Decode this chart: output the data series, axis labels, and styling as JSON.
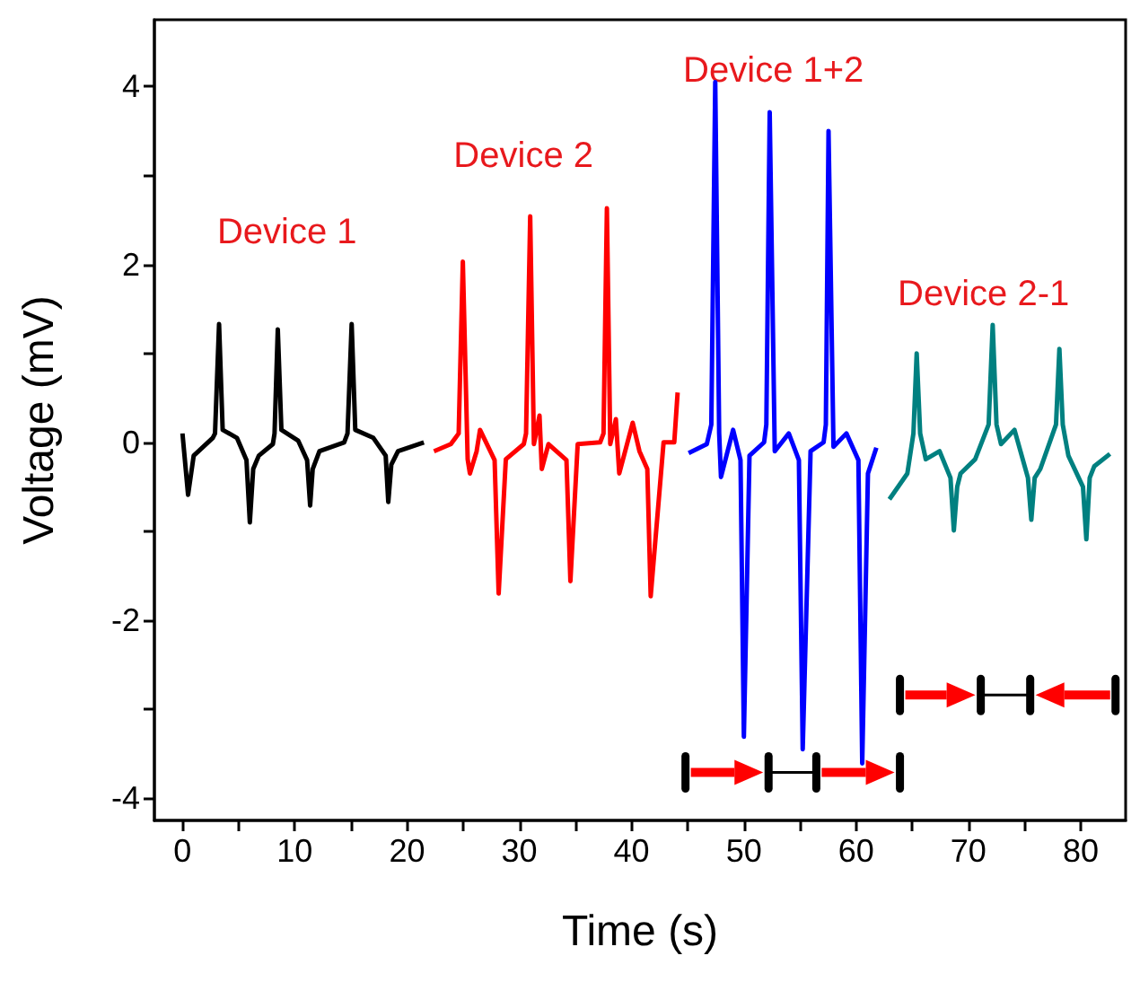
{
  "chart_data": {
    "type": "line",
    "xlabel": "Time (s)",
    "ylabel": "Voltage (mV)",
    "xlim": [
      -2.5,
      84
    ],
    "ylim": [
      -4.25,
      4.75
    ],
    "xticks": [
      0,
      {
        "value": 5,
        "label": null
      },
      10,
      {
        "value": 15,
        "label": null
      },
      20,
      {
        "value": 25,
        "label": null
      },
      30,
      {
        "value": 35,
        "label": null
      },
      40,
      {
        "value": 45,
        "label": null
      },
      50,
      {
        "value": 55,
        "label": null
      },
      60,
      {
        "value": 65,
        "label": null
      },
      70,
      {
        "value": 75,
        "label": null
      },
      80
    ],
    "yticks": [
      -4,
      {
        "value": -3,
        "label": null
      },
      -2,
      {
        "value": -1,
        "label": null
      },
      0,
      {
        "value": 1,
        "label": null
      },
      2,
      {
        "value": 3,
        "label": null
      },
      4
    ],
    "grid": false,
    "marker": "none",
    "line_style": "solid",
    "series": [
      {
        "name": "Device 1",
        "color": "#000000",
        "x": [
          0,
          0.5,
          1.0,
          2.7,
          2.9,
          3.26,
          3.58,
          4.85,
          5.7,
          6.0,
          6.3,
          6.8,
          8.05,
          8.2,
          8.49,
          8.81,
          10.3,
          11.1,
          11.37,
          11.6,
          12.2,
          14.4,
          14.7,
          15.07,
          15.39,
          17.0,
          18.1,
          18.33,
          18.6,
          19.2,
          21.5
        ],
        "values": [
          0.1,
          -0.59,
          -0.15,
          0.05,
          0.1,
          1.33,
          0.14,
          0.05,
          -0.2,
          -0.9,
          -0.3,
          -0.15,
          -0.02,
          0.1,
          1.27,
          0.14,
          0.02,
          -0.2,
          -0.71,
          -0.3,
          -0.1,
          0,
          0.1,
          1.33,
          0.14,
          0.05,
          -0.15,
          -0.67,
          -0.25,
          -0.1,
          0
        ]
      },
      {
        "name": "Device 2",
        "color": "#ff0000",
        "x": [
          22.4,
          23.9,
          24.6,
          24.97,
          25.4,
          25.6,
          26.2,
          26.5,
          27.8,
          28.16,
          28.8,
          30.4,
          30.6,
          30.97,
          31.3,
          31.8,
          32.0,
          32.6,
          34.2,
          34.55,
          35.2,
          37.2,
          37.5,
          37.8,
          38.1,
          38.6,
          38.9,
          40.1,
          40.7,
          41.4,
          41.7,
          42.85,
          43.8,
          44.1
        ],
        "values": [
          -0.1,
          -0.02,
          0.1,
          2.03,
          -0.19,
          -0.35,
          -0.1,
          0.14,
          -0.2,
          -1.7,
          -0.19,
          -0.02,
          0.1,
          2.54,
          -0.02,
          0.3,
          -0.3,
          -0.02,
          -0.2,
          -1.56,
          -0.02,
          0,
          0.1,
          2.63,
          -0.02,
          0.26,
          -0.35,
          0.22,
          -0.1,
          -0.3,
          -1.73,
          0,
          0,
          0.56
        ]
      },
      {
        "name": "Device 1+2",
        "color": "#0000ff",
        "x": [
          45.08,
          46.7,
          47.1,
          47.45,
          47.8,
          47.96,
          49.04,
          49.7,
          50.0,
          50.5,
          51.8,
          52.0,
          52.3,
          52.75,
          54.0,
          54.9,
          55.24,
          55.94,
          57.1,
          57.3,
          57.54,
          57.98,
          59.13,
          60.2,
          60.54,
          61.05,
          61.8
        ],
        "values": [
          -0.12,
          -0.02,
          0.2,
          4.05,
          0.1,
          -0.39,
          0.14,
          -0.2,
          -3.31,
          -0.15,
          0,
          0.2,
          3.71,
          -0.1,
          0.1,
          -0.2,
          -3.45,
          -0.1,
          0,
          0.2,
          3.5,
          -0.05,
          0.1,
          -0.2,
          -3.61,
          -0.35,
          -0.06
        ]
      },
      {
        "name": "Device 2-1",
        "color": "#008080",
        "x": [
          62.96,
          64.56,
          65.1,
          65.39,
          65.7,
          66.2,
          67.43,
          68.4,
          68.7,
          69.0,
          69.3,
          70.6,
          71.8,
          72.16,
          72.5,
          72.9,
          74.1,
          75.3,
          75.6,
          75.9,
          76.4,
          77.8,
          78.1,
          78.4,
          78.9,
          80.2,
          80.5,
          80.8,
          81.2,
          82.6
        ],
        "values": [
          -0.64,
          -0.35,
          0.1,
          1.0,
          0.1,
          -0.19,
          -0.1,
          -0.4,
          -0.99,
          -0.5,
          -0.35,
          -0.19,
          0.2,
          1.32,
          0.2,
          -0.02,
          0.14,
          -0.4,
          -0.87,
          -0.4,
          -0.3,
          0.2,
          1.05,
          0.2,
          -0.15,
          -0.5,
          -1.09,
          -0.4,
          -0.27,
          -0.13
        ]
      }
    ]
  }
}
